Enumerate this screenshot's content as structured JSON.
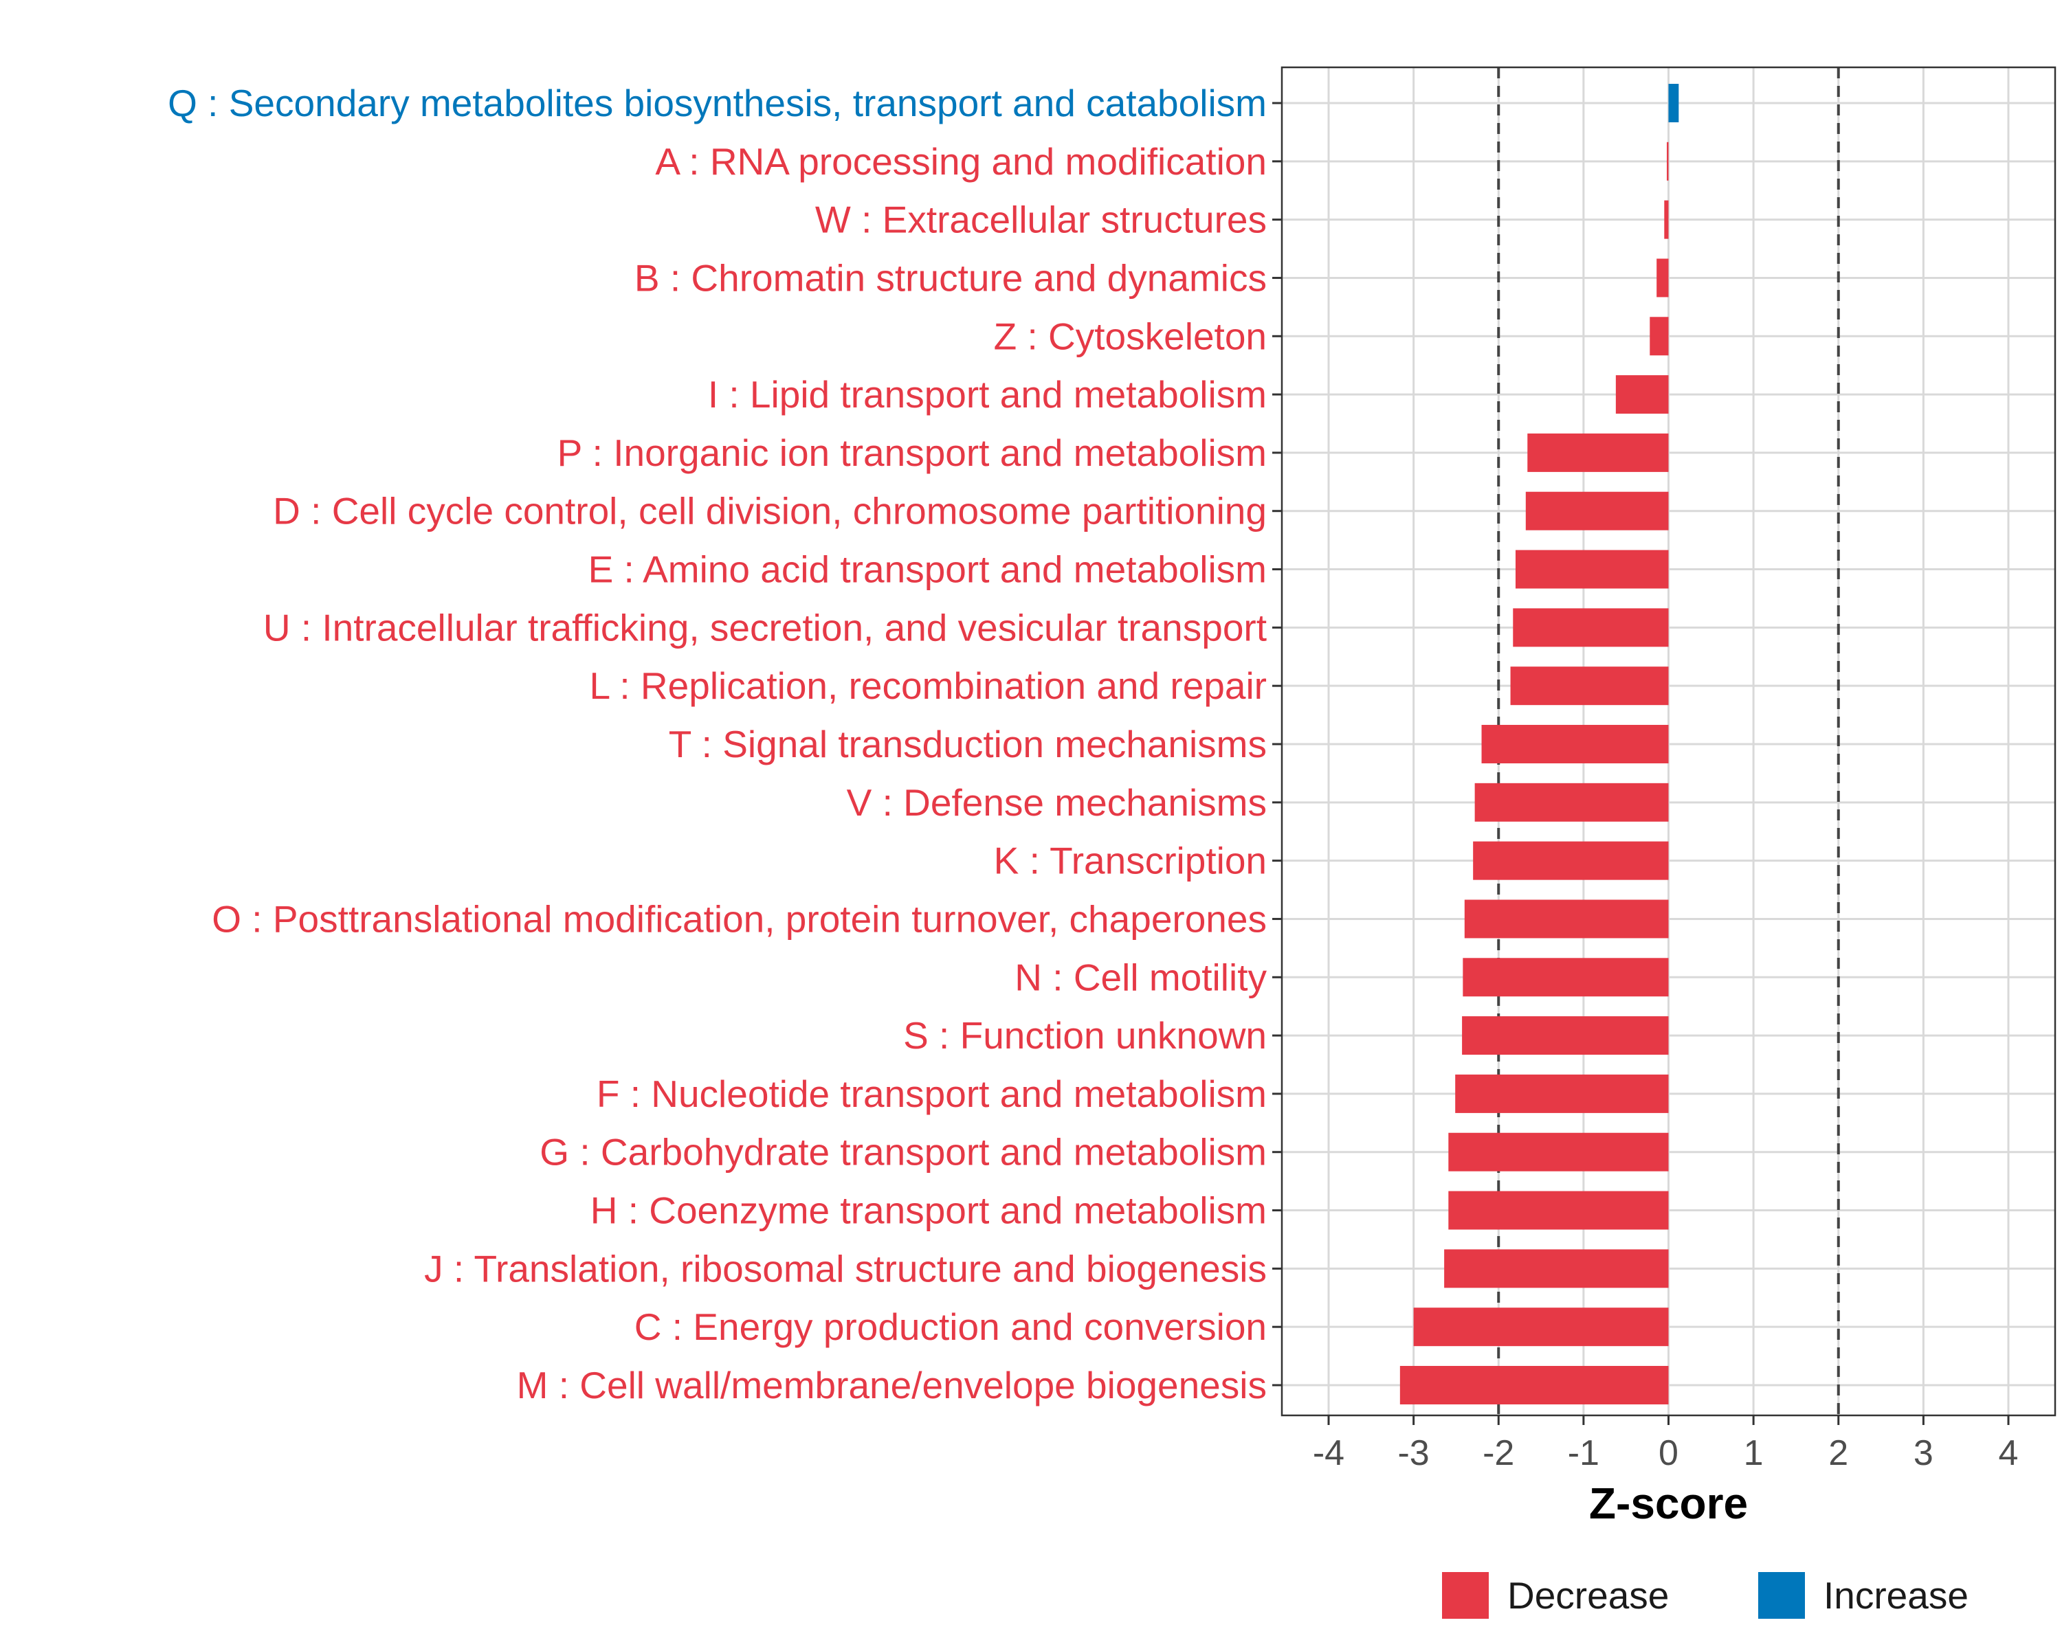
{
  "chart_data": {
    "type": "bar",
    "orientation": "horizontal",
    "title": "",
    "xlabel": "Z-score",
    "ylabel": "",
    "xlim": [
      -4.55,
      4.55
    ],
    "x_ticks": [
      -4,
      -3,
      -2,
      -1,
      0,
      1,
      2,
      3,
      4
    ],
    "x_tick_labels": [
      "-4",
      "-3",
      "-2",
      "-1",
      "0",
      "1",
      "2",
      "3",
      "4"
    ],
    "reference_lines": [
      -2,
      2
    ],
    "grid": true,
    "categories": [
      "Q : Secondary metabolites biosynthesis, transport and catabolism",
      "A : RNA processing and modification",
      "W : Extracellular structures",
      "B : Chromatin structure and dynamics",
      "Z : Cytoskeleton",
      "I : Lipid transport and metabolism",
      "P : Inorganic ion transport and metabolism",
      "D : Cell cycle control, cell division, chromosome partitioning",
      "E : Amino acid transport and metabolism",
      "U : Intracellular trafficking, secretion, and vesicular transport",
      "L : Replication, recombination and repair",
      "T : Signal transduction mechanisms",
      "V : Defense mechanisms",
      "K : Transcription",
      "O : Posttranslational modification, protein turnover, chaperones",
      "N : Cell motility",
      "S : Function unknown",
      "F : Nucleotide transport and metabolism",
      "G : Carbohydrate transport and metabolism",
      "H : Coenzyme transport and metabolism",
      "J : Translation, ribosomal structure and biogenesis",
      "C : Energy production and conversion",
      "M : Cell wall/membrane/envelope biogenesis"
    ],
    "values": [
      0.12,
      -0.02,
      -0.05,
      -0.14,
      -0.22,
      -0.62,
      -1.66,
      -1.68,
      -1.8,
      -1.83,
      -1.86,
      -2.2,
      -2.28,
      -2.3,
      -2.4,
      -2.42,
      -2.43,
      -2.51,
      -2.59,
      -2.59,
      -2.64,
      -3.0,
      -3.16
    ],
    "groups": [
      "Increase",
      "Decrease",
      "Decrease",
      "Decrease",
      "Decrease",
      "Decrease",
      "Decrease",
      "Decrease",
      "Decrease",
      "Decrease",
      "Decrease",
      "Decrease",
      "Decrease",
      "Decrease",
      "Decrease",
      "Decrease",
      "Decrease",
      "Decrease",
      "Decrease",
      "Decrease",
      "Decrease",
      "Decrease",
      "Decrease"
    ],
    "legend": {
      "position": "bottom",
      "entries": [
        {
          "name": "Decrease",
          "color": "#E63946"
        },
        {
          "name": "Increase",
          "color": "#0077BB"
        }
      ]
    },
    "colors": {
      "Decrease": "#E63946",
      "Increase": "#0077BB",
      "grid": "#D9D9D9",
      "panel_border": "#333333",
      "reference_line": "#444444"
    }
  }
}
